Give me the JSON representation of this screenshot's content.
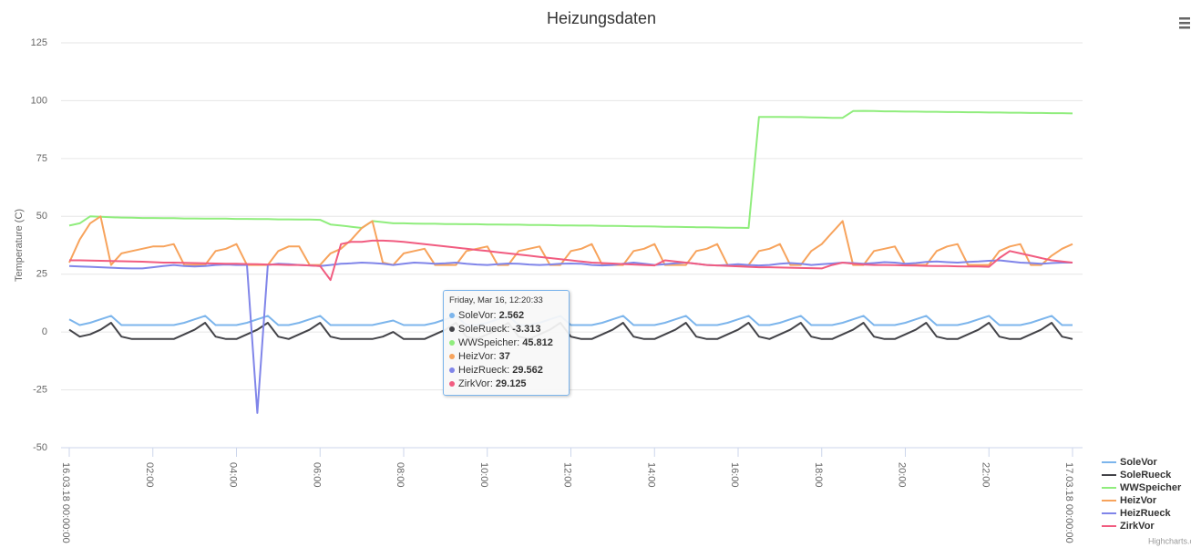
{
  "chart_data": {
    "type": "line",
    "title": "Heizungsdaten",
    "y_axis_label": "Temperature (C)",
    "x": [
      0,
      0.25,
      0.5,
      0.75,
      1,
      1.25,
      1.5,
      1.75,
      2,
      2.25,
      2.5,
      2.75,
      3,
      3.25,
      3.5,
      3.75,
      4,
      4.25,
      4.5,
      4.75,
      5,
      5.25,
      5.5,
      5.75,
      6,
      6.25,
      6.5,
      6.75,
      7,
      7.25,
      7.5,
      7.75,
      8,
      8.25,
      8.5,
      8.75,
      9,
      9.25,
      9.5,
      9.75,
      10,
      10.25,
      10.5,
      10.75,
      11,
      11.25,
      11.5,
      11.75,
      12,
      12.25,
      12.5,
      12.75,
      13,
      13.25,
      13.5,
      13.75,
      14,
      14.25,
      14.5,
      14.75,
      15,
      15.25,
      15.5,
      15.75,
      16,
      16.25,
      16.5,
      16.75,
      17,
      17.25,
      17.5,
      17.75,
      18,
      18.25,
      18.5,
      18.75,
      19,
      19.25,
      19.5,
      19.75,
      20,
      20.25,
      20.5,
      20.75,
      21,
      21.25,
      21.5,
      21.75,
      22,
      22.25,
      22.5,
      22.75,
      23,
      23.25,
      23.5,
      23.75,
      24
    ],
    "xlim": [
      0,
      24
    ],
    "xticks": [
      {
        "value": 0,
        "label": "16.03.18 00:00:00"
      },
      {
        "value": 2,
        "label": "02:00"
      },
      {
        "value": 4,
        "label": "04:00"
      },
      {
        "value": 6,
        "label": "06:00"
      },
      {
        "value": 8,
        "label": "08:00"
      },
      {
        "value": 10,
        "label": "10:00"
      },
      {
        "value": 12,
        "label": "12:00"
      },
      {
        "value": 14,
        "label": "14:00"
      },
      {
        "value": 16,
        "label": "16:00"
      },
      {
        "value": 18,
        "label": "18:00"
      },
      {
        "value": 20,
        "label": "20:00"
      },
      {
        "value": 22,
        "label": "22:00"
      },
      {
        "value": 24,
        "label": "17.03.18 00:00:00"
      }
    ],
    "ylim": [
      -50,
      125
    ],
    "yticks": [
      -50,
      -25,
      0,
      25,
      50,
      75,
      100,
      125
    ],
    "grid": true,
    "legend": "bottom-right",
    "series": [
      {
        "name": "SoleVor",
        "color": "#7cb5ec",
        "values": [
          5.5,
          3,
          4,
          5.5,
          7,
          3,
          3,
          3,
          3,
          3,
          3,
          4,
          5.5,
          7,
          3,
          3,
          3,
          4,
          5.5,
          7,
          3,
          3,
          4,
          5.5,
          7,
          3,
          3,
          3,
          3,
          3,
          4,
          5,
          3,
          3,
          3,
          4,
          5.5,
          7,
          3,
          3,
          4,
          5.5,
          7,
          3,
          3,
          4,
          5.5,
          7,
          3,
          3,
          3,
          4,
          5.5,
          7,
          3,
          3,
          3,
          4,
          5.5,
          7,
          3,
          3,
          3,
          4,
          5.5,
          7,
          3,
          3,
          4,
          5.5,
          7,
          3,
          3,
          3,
          4,
          5.5,
          7,
          3,
          3,
          3,
          4,
          5.5,
          7,
          3,
          3,
          3,
          4,
          5.5,
          7,
          3,
          3,
          3,
          4,
          5.5,
          7,
          3,
          3
        ]
      },
      {
        "name": "SoleRueck",
        "color": "#434348",
        "values": [
          1,
          -2,
          -1,
          1,
          4,
          -2,
          -3,
          -3,
          -3,
          -3,
          -3,
          -1,
          1,
          4,
          -2,
          -3,
          -3,
          -1,
          1,
          4,
          -2,
          -3,
          -1,
          1,
          4,
          -2,
          -3,
          -3,
          -3,
          -3,
          -2,
          0,
          -3,
          -3,
          -3,
          -1,
          1,
          4,
          -2,
          -3,
          -1,
          1,
          4,
          -2,
          -3,
          -1,
          1,
          4,
          -2,
          -3,
          -3,
          -1,
          1,
          4,
          -2,
          -3,
          -3,
          -1,
          1,
          4,
          -2,
          -3,
          -3,
          -1,
          1,
          4,
          -2,
          -3,
          -1,
          1,
          4,
          -2,
          -3,
          -3,
          -1,
          1,
          4,
          -2,
          -3,
          -3,
          -1,
          1,
          4,
          -2,
          -3,
          -3,
          -1,
          1,
          4,
          -2,
          -3,
          -3,
          -1,
          1,
          4,
          -2,
          -3
        ]
      },
      {
        "name": "WWSpeicher",
        "color": "#90ed7d",
        "values": [
          46,
          47,
          50,
          49.8,
          49.6,
          49.5,
          49.4,
          49.3,
          49.3,
          49.2,
          49.2,
          49.1,
          49.1,
          49,
          49,
          49,
          48.9,
          48.9,
          48.8,
          48.8,
          48.7,
          48.7,
          48.6,
          48.6,
          48.5,
          46.5,
          46,
          45.5,
          45,
          48,
          47.5,
          47,
          47,
          46.9,
          46.8,
          46.8,
          46.7,
          46.7,
          46.6,
          46.6,
          46.5,
          46.5,
          46.4,
          46.4,
          46.3,
          46.3,
          46.2,
          46.1,
          46.1,
          46,
          46,
          45.9,
          45.9,
          45.8,
          45.7,
          45.7,
          45.6,
          45.5,
          45.5,
          45.4,
          45.3,
          45.3,
          45.2,
          45.1,
          45.1,
          45,
          93,
          93,
          93,
          92.9,
          92.9,
          92.8,
          92.7,
          92.6,
          92.6,
          95.5,
          95.6,
          95.5,
          95.4,
          95.4,
          95.3,
          95.3,
          95.2,
          95.2,
          95.1,
          95.1,
          95,
          95,
          94.9,
          94.9,
          94.8,
          94.8,
          94.7,
          94.7,
          94.6,
          94.6,
          94.5
        ]
      },
      {
        "name": "HeizVor",
        "color": "#f7a35c",
        "values": [
          30,
          40,
          47,
          50,
          29,
          34,
          35,
          36,
          37,
          37,
          38,
          29,
          29,
          29,
          35,
          36,
          38,
          29,
          29,
          29,
          35,
          37,
          37,
          29,
          29,
          34,
          36,
          40,
          45,
          48,
          30,
          29,
          34,
          35,
          36,
          29,
          29,
          29,
          35,
          36,
          37,
          29,
          29,
          35,
          36,
          37,
          29,
          29,
          35,
          36,
          38,
          29,
          29,
          29,
          35,
          36,
          38,
          29,
          29,
          29,
          35,
          36,
          38,
          29,
          29,
          29,
          35,
          36,
          38,
          29,
          29,
          35,
          38,
          43,
          48,
          29,
          29,
          35,
          36,
          37,
          29,
          29,
          29,
          35,
          37,
          38,
          29,
          29,
          29,
          35,
          37,
          38,
          29,
          29,
          33,
          36,
          38
        ]
      },
      {
        "name": "HeizRueck",
        "color": "#8085e9",
        "values": [
          28.5,
          28.3,
          28.2,
          28,
          27.8,
          27.6,
          27.5,
          27.5,
          28,
          28.5,
          29,
          28.5,
          28.3,
          28.5,
          29,
          29.2,
          29,
          29,
          -35,
          29,
          29.5,
          29.3,
          29,
          28.8,
          28.5,
          29,
          29.5,
          29.7,
          30,
          29.8,
          29.5,
          29,
          29.5,
          30,
          29.8,
          29.5,
          29.7,
          30,
          29.5,
          29.2,
          29,
          29.3,
          29.6,
          29.5,
          29.2,
          29,
          29.2,
          29.5,
          29.6,
          29.5,
          29,
          28.8,
          29,
          29.5,
          30,
          29.5,
          29,
          29.3,
          29.7,
          30,
          29.5,
          29,
          28.8,
          29,
          29.3,
          29,
          28.8,
          29,
          29.5,
          29.8,
          29.5,
          29,
          29.3,
          29.6,
          30,
          29.8,
          29.5,
          29.8,
          30.2,
          30,
          29.5,
          29.8,
          30.3,
          30.5,
          30.2,
          30,
          30.3,
          30.5,
          30.8,
          31,
          30.5,
          30,
          29.8,
          29.5,
          29.8,
          30,
          30
        ]
      },
      {
        "name": "ZirkVor",
        "color": "#f15c80",
        "values": [
          31,
          31,
          30.9,
          30.8,
          30.7,
          30.6,
          30.5,
          30.4,
          30.2,
          30,
          30,
          29.9,
          29.8,
          29.7,
          29.6,
          29.5,
          29.5,
          29.4,
          29.3,
          29.2,
          29.1,
          29,
          29,
          28.8,
          28.5,
          22.5,
          38,
          39,
          39,
          39.5,
          39.5,
          39.3,
          39,
          38.5,
          38,
          37.5,
          37,
          36.5,
          36,
          35.5,
          35,
          34.5,
          34,
          33.5,
          33,
          32.5,
          32,
          31.5,
          31,
          30.5,
          30,
          29.8,
          29.6,
          29.4,
          29.2,
          29,
          28.8,
          31,
          30.5,
          30,
          29.5,
          29,
          28.8,
          28.6,
          28.4,
          28.2,
          28,
          28,
          27.9,
          27.8,
          27.7,
          27.6,
          27.5,
          29,
          30,
          29.5,
          29.2,
          29,
          29,
          28.9,
          28.8,
          28.7,
          28.6,
          28.5,
          28.5,
          28.4,
          28.3,
          28.3,
          28.2,
          32,
          35,
          34,
          33,
          32,
          31,
          30.5,
          30
        ]
      }
    ],
    "tooltip": {
      "title": "Friday, Mar 16, 12:20:33",
      "items": [
        {
          "label": "SoleVor:",
          "value": 2.562
        },
        {
          "label": "SoleRueck:",
          "value": -3.313
        },
        {
          "label": "WWSpeicher:",
          "value": 45.812
        },
        {
          "label": "HeizVor:",
          "value": 37
        },
        {
          "label": "HeizRueck:",
          "value": 29.562
        },
        {
          "label": "ZirkVor:",
          "value": 29.125
        }
      ]
    },
    "credits": "Highcharts.com"
  }
}
